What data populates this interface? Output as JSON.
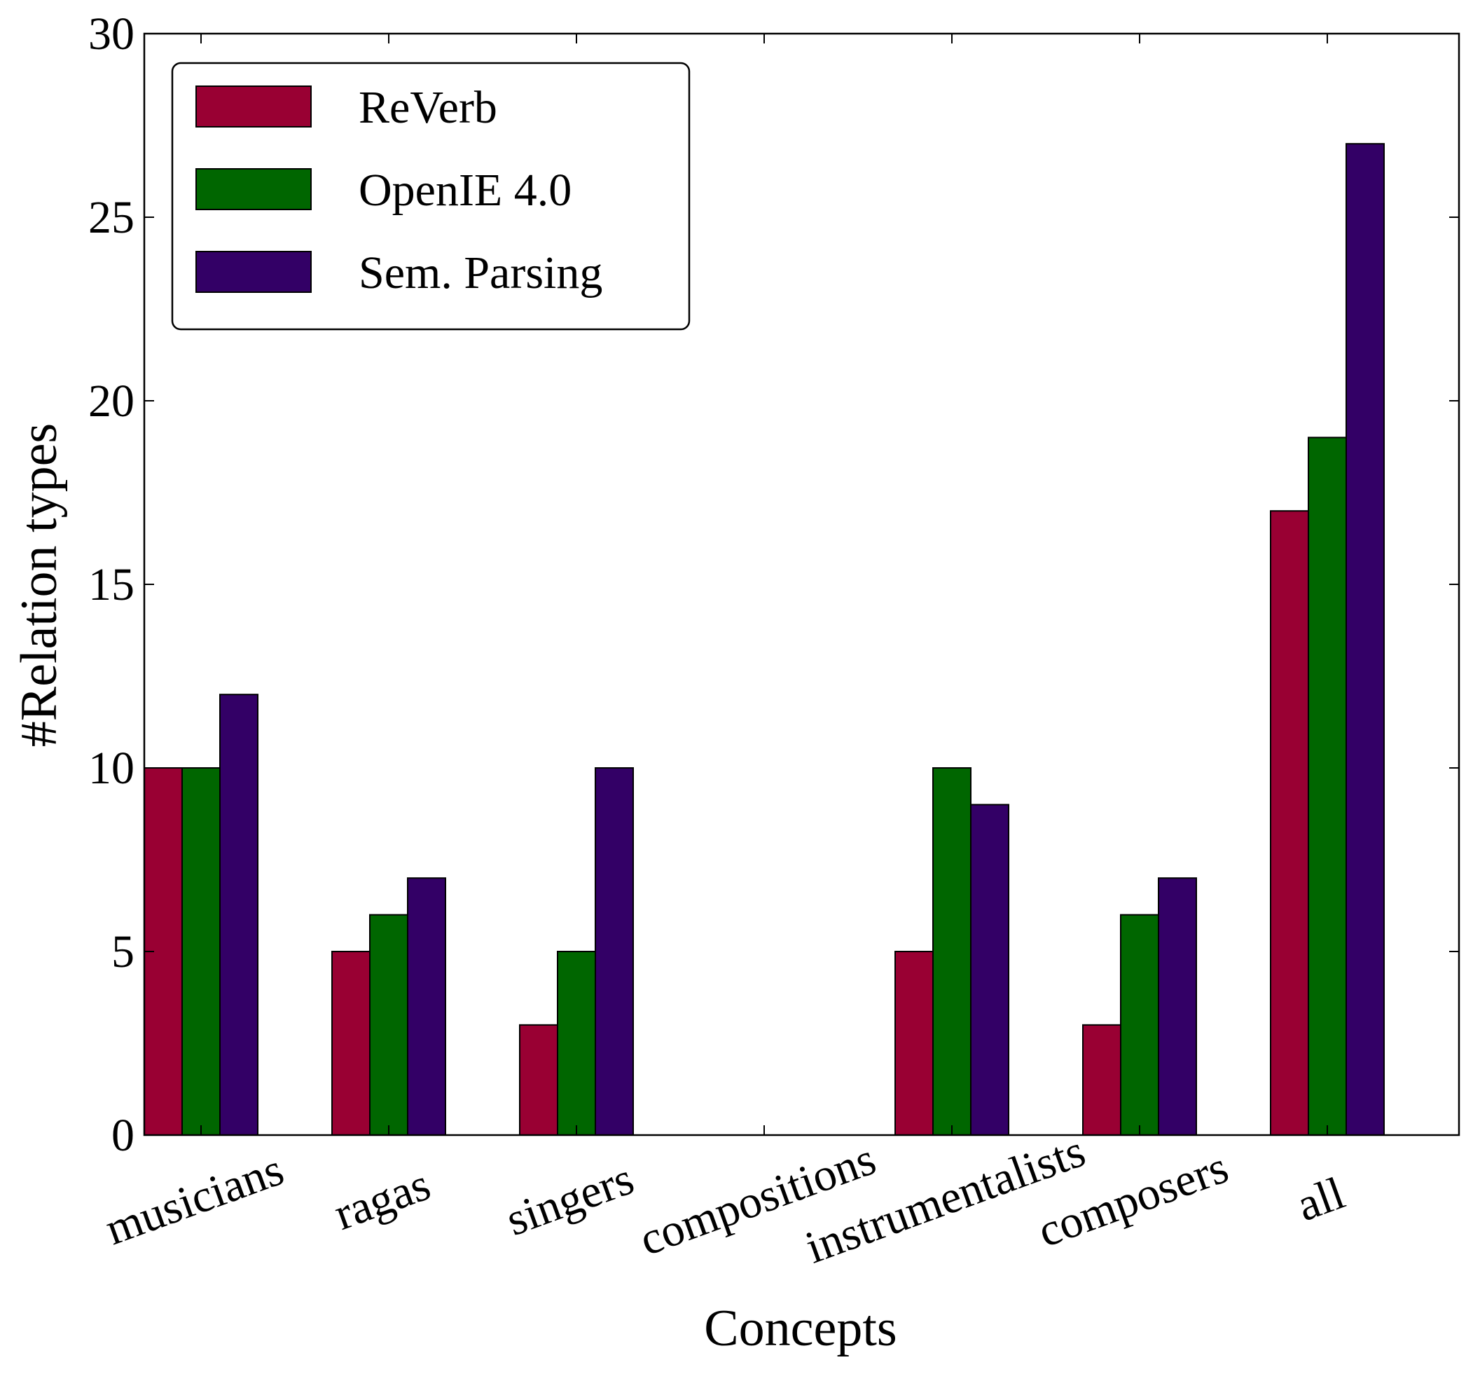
{
  "chart_data": {
    "type": "bar",
    "xlabel": "Concepts",
    "ylabel": "#Relation types",
    "ylim": [
      0,
      30
    ],
    "yticks": [
      0,
      5,
      10,
      15,
      20,
      25,
      30
    ],
    "categories": [
      "musicians",
      "ragas",
      "singers",
      "compositions",
      "instrumentalists",
      "composers",
      "all"
    ],
    "series": [
      {
        "name": "ReVerb",
        "color": "#990033",
        "values": [
          10,
          5,
          3,
          0,
          5,
          3,
          17
        ]
      },
      {
        "name": "OpenIE 4.0",
        "color": "#006600",
        "values": [
          10,
          6,
          5,
          0,
          10,
          6,
          19
        ]
      },
      {
        "name": "Sem. Parsing",
        "color": "#330066",
        "values": [
          12,
          7,
          10,
          0,
          9,
          7,
          27
        ]
      }
    ],
    "legend_position": "top-left",
    "grid": false
  }
}
